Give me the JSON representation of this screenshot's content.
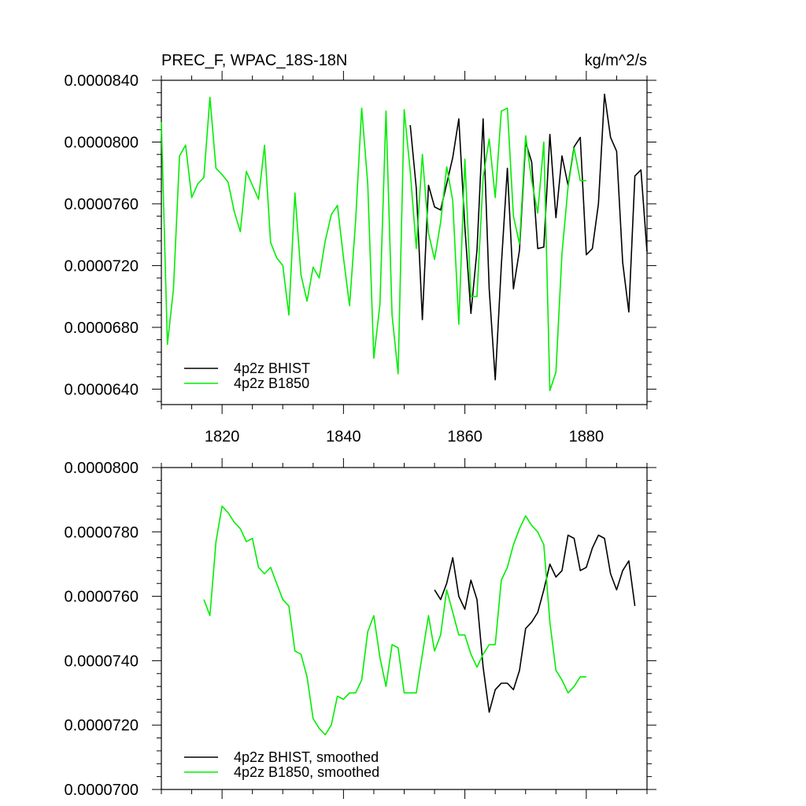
{
  "chart_data": [
    {
      "type": "line",
      "title": "PREC_F, WPAC_18S-18N",
      "units": "kg/m^2/s",
      "xlim": [
        1810,
        1890
      ],
      "ylim": [
        6.3e-05,
        8.4e-05
      ],
      "xticks": [
        1820,
        1840,
        1860,
        1880
      ],
      "xtick_labels": [
        "1820",
        "1840",
        "1860",
        "1880"
      ],
      "yticks": [
        6.4e-05,
        6.8e-05,
        7.2e-05,
        7.6e-05,
        8e-05,
        8.4e-05
      ],
      "ytick_labels": [
        "0.0000640",
        "0.0000680",
        "0.0000720",
        "0.0000760",
        "0.0000800",
        "0.0000840"
      ],
      "legend_position": "bottom-left",
      "series": [
        {
          "name": "4p2z BHIST",
          "color": "#000000",
          "x": [
            1851,
            1852,
            1853,
            1854,
            1855,
            1856,
            1857,
            1858,
            1859,
            1860,
            1861,
            1862,
            1863,
            1864,
            1865,
            1866,
            1867,
            1868,
            1869,
            1870,
            1871,
            1872,
            1873,
            1874,
            1875,
            1876,
            1877,
            1878,
            1879,
            1880,
            1881,
            1882,
            1883,
            1884,
            1885,
            1886,
            1887,
            1888,
            1889,
            1890
          ],
          "y": [
            8.11e-05,
            7.7e-05,
            6.85e-05,
            7.72e-05,
            7.58e-05,
            7.56e-05,
            7.73e-05,
            7.9e-05,
            8.15e-05,
            7.45e-05,
            6.89e-05,
            7.3e-05,
            8.15e-05,
            7.05e-05,
            6.46e-05,
            7.2e-05,
            7.83e-05,
            7.05e-05,
            7.3e-05,
            8e-05,
            7.87e-05,
            7.31e-05,
            7.32e-05,
            8.05e-05,
            7.51e-05,
            7.91e-05,
            7.72e-05,
            7.97e-05,
            8.03e-05,
            7.27e-05,
            7.31e-05,
            7.6e-05,
            8.31e-05,
            8.03e-05,
            7.94e-05,
            7.22e-05,
            6.9e-05,
            7.78e-05,
            7.82e-05,
            7.29e-05
          ]
        },
        {
          "name": "4p2z B1850",
          "color": "#00ee00",
          "x": [
            1810,
            1811,
            1812,
            1813,
            1814,
            1815,
            1816,
            1817,
            1818,
            1819,
            1820,
            1821,
            1822,
            1823,
            1824,
            1825,
            1826,
            1827,
            1828,
            1829,
            1830,
            1831,
            1832,
            1833,
            1834,
            1835,
            1836,
            1837,
            1838,
            1839,
            1840,
            1841,
            1842,
            1843,
            1844,
            1845,
            1846,
            1847,
            1848,
            1849,
            1850,
            1851,
            1852,
            1853,
            1854,
            1855,
            1856,
            1857,
            1858,
            1859,
            1860,
            1861,
            1862,
            1863,
            1864,
            1865,
            1866,
            1867,
            1868,
            1869,
            1870,
            1871,
            1872,
            1873,
            1874,
            1875,
            1876,
            1877,
            1878,
            1879,
            1880
          ],
          "y": [
            8.13e-05,
            6.69e-05,
            7.05e-05,
            7.91e-05,
            7.98e-05,
            7.64e-05,
            7.73e-05,
            7.77e-05,
            8.29e-05,
            7.83e-05,
            7.79e-05,
            7.74e-05,
            7.55e-05,
            7.42e-05,
            7.81e-05,
            7.72e-05,
            7.63e-05,
            7.98e-05,
            7.35e-05,
            7.25e-05,
            7.2e-05,
            6.88e-05,
            7.67e-05,
            7.14e-05,
            6.97e-05,
            7.19e-05,
            7.12e-05,
            7.36e-05,
            7.53e-05,
            7.59e-05,
            7.25e-05,
            6.94e-05,
            7.49e-05,
            8.22e-05,
            7.73e-05,
            6.6e-05,
            6.95e-05,
            8.2e-05,
            6.88e-05,
            6.5e-05,
            8.21e-05,
            7.81e-05,
            7.31e-05,
            7.92e-05,
            7.41e-05,
            7.24e-05,
            7.48e-05,
            7.84e-05,
            7.62e-05,
            6.82e-05,
            7.89e-05,
            7e-05,
            7e-05,
            7.77e-05,
            8.02e-05,
            7.64e-05,
            8.2e-05,
            8.22e-05,
            7.52e-05,
            7.34e-05,
            8.04e-05,
            7.75e-05,
            7.54e-05,
            8e-05,
            6.39e-05,
            6.51e-05,
            7.28e-05,
            7.71e-05,
            7.96e-05,
            7.75e-05,
            7.75e-05
          ]
        }
      ]
    },
    {
      "type": "line",
      "xlim": [
        1810,
        1890
      ],
      "ylim": [
        7e-05,
        8e-05
      ],
      "xticks": [
        1820,
        1840,
        1860,
        1880
      ],
      "yticks": [
        7e-05,
        7.2e-05,
        7.4e-05,
        7.6e-05,
        7.8e-05,
        8e-05
      ],
      "ytick_labels": [
        "0.0000700",
        "0.0000720",
        "0.0000740",
        "0.0000760",
        "0.0000780",
        "0.0000800"
      ],
      "legend_position": "bottom-left",
      "series": [
        {
          "name": "4p2z BHIST, smoothed",
          "color": "#000000",
          "x": [
            1855,
            1856,
            1857,
            1858,
            1859,
            1860,
            1861,
            1862,
            1863,
            1864,
            1865,
            1866,
            1867,
            1868,
            1869,
            1870,
            1871,
            1872,
            1873,
            1874,
            1875,
            1876,
            1877,
            1878,
            1879,
            1880,
            1881,
            1882,
            1883,
            1884,
            1885,
            1886,
            1887,
            1888
          ],
          "y": [
            7.62e-05,
            7.59e-05,
            7.64e-05,
            7.72e-05,
            7.6e-05,
            7.56e-05,
            7.65e-05,
            7.59e-05,
            7.38e-05,
            7.24e-05,
            7.31e-05,
            7.33e-05,
            7.33e-05,
            7.31e-05,
            7.37e-05,
            7.5e-05,
            7.52e-05,
            7.55e-05,
            7.62e-05,
            7.7e-05,
            7.66e-05,
            7.68e-05,
            7.79e-05,
            7.78e-05,
            7.68e-05,
            7.69e-05,
            7.75e-05,
            7.79e-05,
            7.78e-05,
            7.67e-05,
            7.62e-05,
            7.68e-05,
            7.71e-05,
            7.57e-05
          ]
        },
        {
          "name": "4p2z B1850, smoothed",
          "color": "#00ee00",
          "x": [
            1817,
            1818,
            1819,
            1820,
            1821,
            1822,
            1823,
            1824,
            1825,
            1826,
            1827,
            1828,
            1829,
            1830,
            1831,
            1832,
            1833,
            1834,
            1835,
            1836,
            1837,
            1838,
            1839,
            1840,
            1841,
            1842,
            1843,
            1844,
            1845,
            1846,
            1847,
            1848,
            1849,
            1850,
            1851,
            1852,
            1853,
            1854,
            1855,
            1856,
            1857,
            1858,
            1859,
            1860,
            1861,
            1862,
            1863,
            1864,
            1865,
            1866,
            1867,
            1868,
            1869,
            1870,
            1871,
            1872,
            1873,
            1874,
            1875,
            1876,
            1877,
            1878,
            1879,
            1880
          ],
          "y": [
            7.59e-05,
            7.54e-05,
            7.77e-05,
            7.88e-05,
            7.86e-05,
            7.83e-05,
            7.81e-05,
            7.77e-05,
            7.78e-05,
            7.69e-05,
            7.67e-05,
            7.69e-05,
            7.64e-05,
            7.59e-05,
            7.57e-05,
            7.43e-05,
            7.42e-05,
            7.35e-05,
            7.22e-05,
            7.19e-05,
            7.17e-05,
            7.2e-05,
            7.29e-05,
            7.28e-05,
            7.3e-05,
            7.3e-05,
            7.34e-05,
            7.49e-05,
            7.54e-05,
            7.41e-05,
            7.32e-05,
            7.45e-05,
            7.44e-05,
            7.3e-05,
            7.3e-05,
            7.3e-05,
            7.42e-05,
            7.54e-05,
            7.43e-05,
            7.48e-05,
            7.62e-05,
            7.55e-05,
            7.48e-05,
            7.48e-05,
            7.42e-05,
            7.38e-05,
            7.42e-05,
            7.45e-05,
            7.45e-05,
            7.65e-05,
            7.69e-05,
            7.76e-05,
            7.81e-05,
            7.85e-05,
            7.82e-05,
            7.8e-05,
            7.76e-05,
            7.52e-05,
            7.37e-05,
            7.34e-05,
            7.3e-05,
            7.32e-05,
            7.35e-05,
            7.35e-05
          ]
        }
      ]
    }
  ]
}
